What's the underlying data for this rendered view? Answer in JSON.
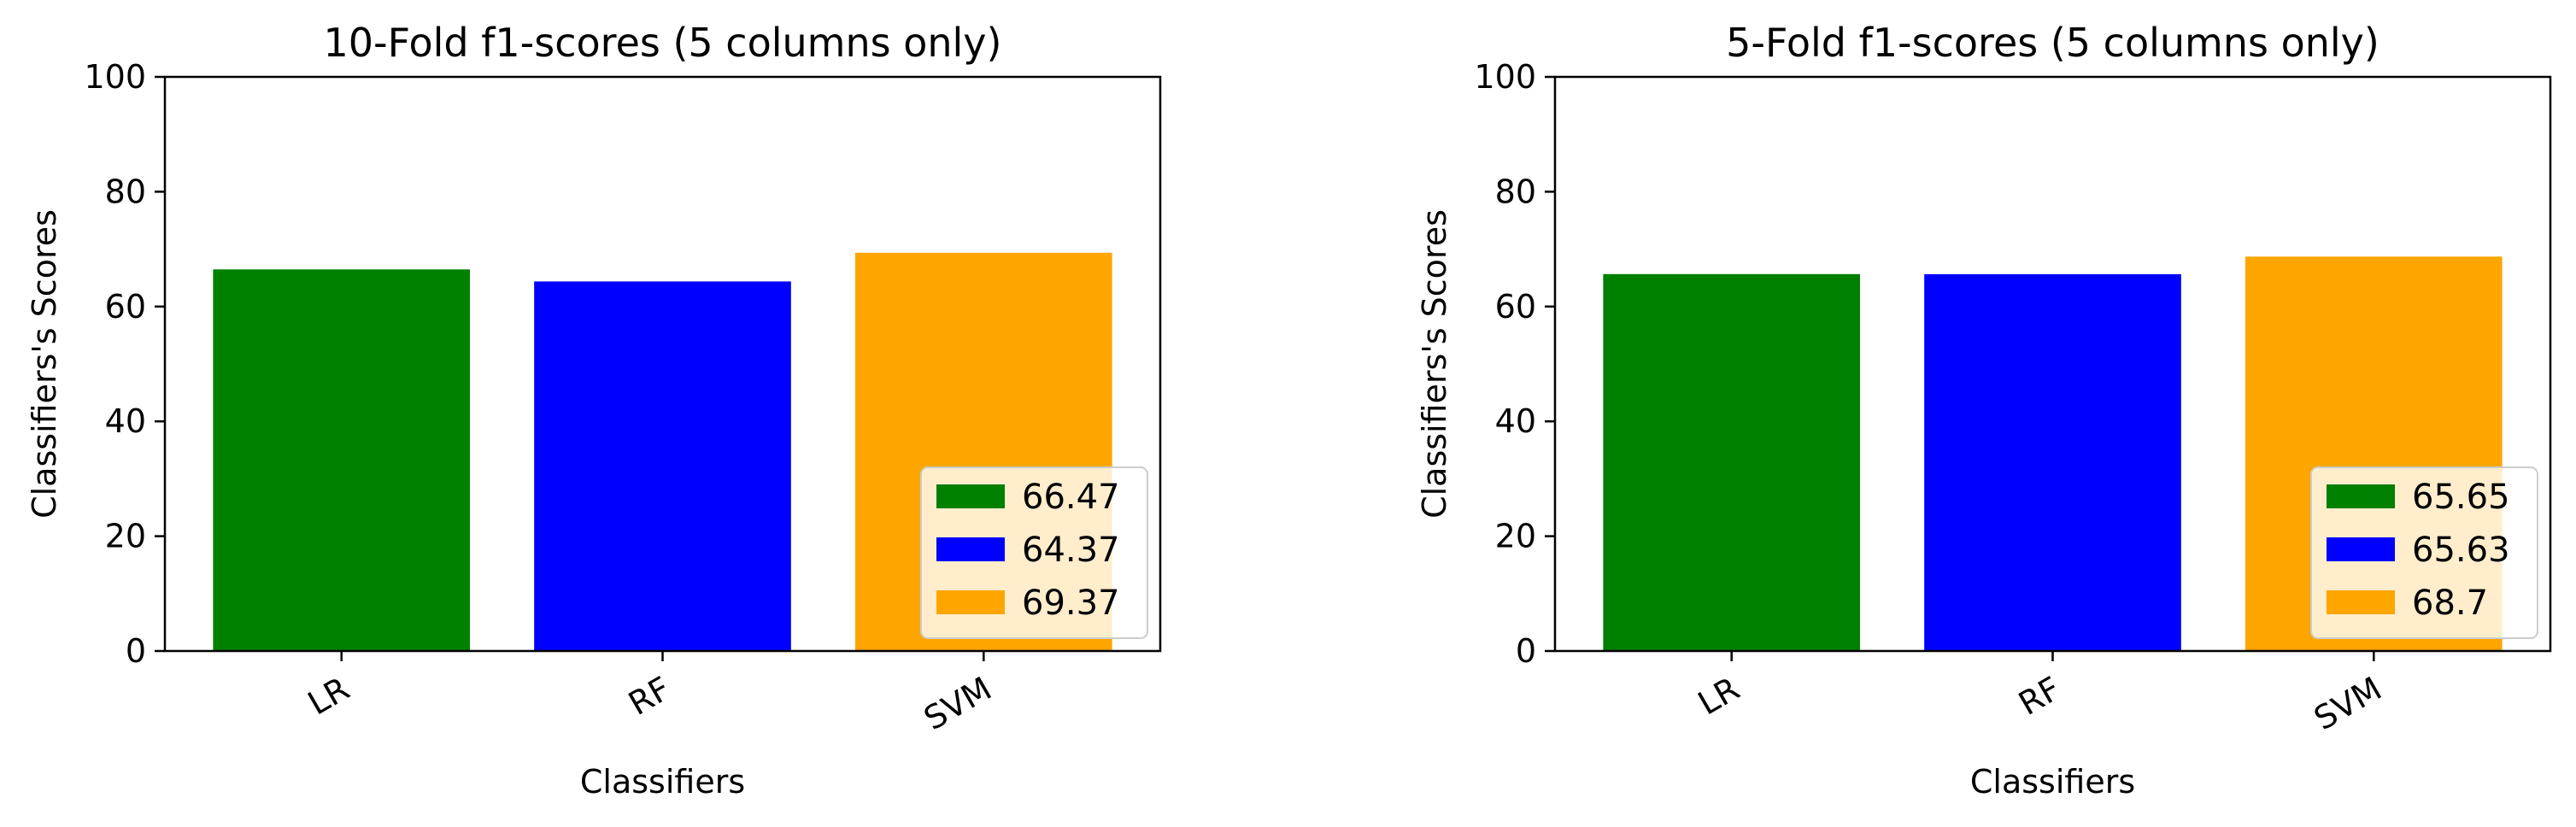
{
  "chart_data": [
    {
      "type": "bar",
      "title": "10-Fold f1-scores (5 columns only)",
      "xlabel": "Classifiers",
      "ylabel": "Classifiers's Scores",
      "categories": [
        "LR",
        "RF",
        "SVM"
      ],
      "values": [
        66.47,
        64.37,
        69.37
      ],
      "colors": [
        "#008000",
        "#0000ff",
        "#ffa500"
      ],
      "ylim": [
        0,
        100
      ],
      "yticks": [
        0,
        20,
        40,
        60,
        80,
        100
      ],
      "legend": {
        "position": "lower-right",
        "entries": [
          "66.47",
          "64.37",
          "69.37"
        ]
      },
      "grid": false
    },
    {
      "type": "bar",
      "title": "5-Fold f1-scores (5 columns only)",
      "xlabel": "Classifiers",
      "ylabel": "Classifiers's Scores",
      "categories": [
        "LR",
        "RF",
        "SVM"
      ],
      "values": [
        65.65,
        65.63,
        68.7
      ],
      "colors": [
        "#008000",
        "#0000ff",
        "#ffa500"
      ],
      "ylim": [
        0,
        100
      ],
      "yticks": [
        0,
        20,
        40,
        60,
        80,
        100
      ],
      "legend": {
        "position": "lower-right",
        "entries": [
          "65.65",
          "65.63",
          "68.7"
        ]
      },
      "grid": false
    }
  ]
}
